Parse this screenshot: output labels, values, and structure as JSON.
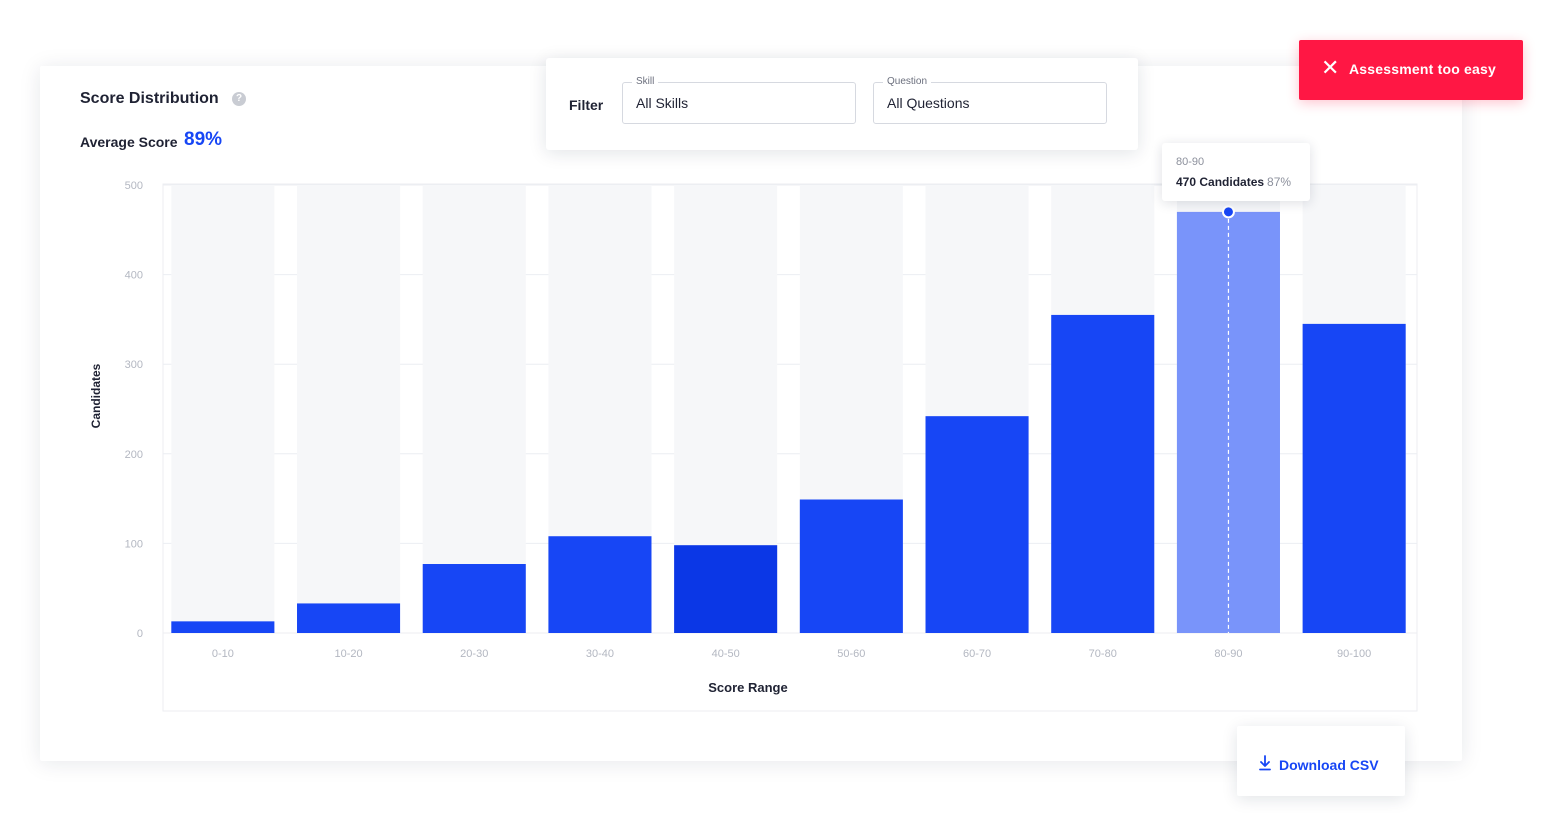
{
  "header": {
    "title": "Score Distribution",
    "help_icon": "question-circle-icon",
    "average_label": "Average Score",
    "average_value": "89%"
  },
  "filter": {
    "label": "Filter",
    "skill": {
      "legend": "Skill",
      "value": "All Skills"
    },
    "question": {
      "legend": "Question",
      "value": "All Questions"
    }
  },
  "alert": {
    "icon": "close-icon",
    "text": "Assessment too easy",
    "color": "#ff1744"
  },
  "download": {
    "icon": "download-icon",
    "label": "Download CSV"
  },
  "tooltip": {
    "range": "80-90",
    "count": "470 Candidates",
    "percent": "87%"
  },
  "colors": {
    "bar": "#1746f5",
    "bar_dark": "#0b37e6",
    "bar_highlight": "#7994fa",
    "accent": "#1746f5"
  },
  "chart_data": {
    "type": "bar",
    "categories": [
      "0-10",
      "10-20",
      "20-30",
      "30-40",
      "40-50",
      "50-60",
      "60-70",
      "70-80",
      "80-90",
      "90-100"
    ],
    "values": [
      13,
      33,
      77,
      108,
      98,
      149,
      242,
      355,
      470,
      345
    ],
    "highlighted_index": 8,
    "xlabel": "Score Range",
    "ylabel": "Candidates",
    "ylim": [
      0,
      500
    ],
    "yticks": [
      0,
      100,
      200,
      300,
      400,
      500
    ],
    "grid": true
  }
}
